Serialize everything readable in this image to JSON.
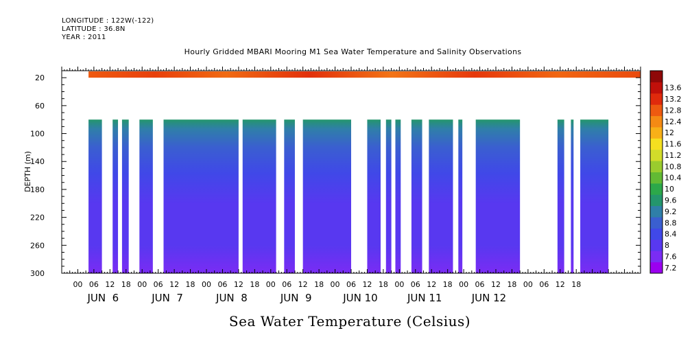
{
  "header": {
    "longitude": "LONGITUDE : 122W(-122)",
    "latitude": "LATITUDE : 36.8N",
    "year": "YEAR : 2011"
  },
  "chart_data": {
    "type": "heatmap",
    "title": "Hourly Gridded MBARI Mooring M1 Sea Water Temperature and Salinity Observations",
    "xlabel": "Sea Water Temperature (Celsius)",
    "ylabel": "DEPTH (m)",
    "ylim": [
      300,
      10
    ],
    "y_ticks": [
      20,
      60,
      100,
      140,
      180,
      220,
      260,
      300
    ],
    "x_hour_ticks": [
      "00",
      "06",
      "12",
      "18",
      "00",
      "06",
      "12",
      "18",
      "00",
      "06",
      "12",
      "18",
      "00",
      "06",
      "12",
      "18",
      "00",
      "06",
      "12",
      "18",
      "00",
      "06",
      "12",
      "18",
      "00",
      "06",
      "12",
      "18",
      "00",
      "06",
      "12",
      "18"
    ],
    "x_day_labels": [
      "JUN  6",
      "JUN  7",
      "JUN  8",
      "JUN  9",
      "JUN 10",
      "JUN 11",
      "JUN 12"
    ],
    "x_range_hours_since_jun6_00": [
      -6,
      210
    ],
    "colorbar": {
      "levels": [
        7.2,
        7.6,
        8,
        8.4,
        8.8,
        9.2,
        9.6,
        10,
        10.4,
        10.8,
        11.2,
        11.6,
        12,
        12.4,
        12.8,
        13.2,
        13.6
      ],
      "colors": [
        "#9b00f0",
        "#7a2cf4",
        "#5838f0",
        "#4048e8",
        "#3a5fd0",
        "#2f7fa8",
        "#24966c",
        "#2ca84a",
        "#62ba34",
        "#9acc2e",
        "#d2dc2a",
        "#f5e020",
        "#f8b018",
        "#f58a14",
        "#ee5a10",
        "#e02a0c",
        "#c0100a",
        "#8e0808"
      ]
    },
    "surface_layer": {
      "depth_range": [
        10,
        20
      ],
      "temperature_range": [
        12.4,
        13.2
      ],
      "time_range_hours": [
        4,
        210
      ]
    },
    "deep_layer": {
      "depth_range": [
        80,
        300
      ],
      "temperature_range": [
        7.2,
        9.6
      ],
      "data_segments_hours": [
        [
          4,
          9
        ],
        [
          13,
          15
        ],
        [
          16.5,
          19
        ],
        [
          23,
          28
        ],
        [
          32,
          60
        ],
        [
          61.5,
          74
        ],
        [
          77,
          81
        ],
        [
          84,
          102
        ],
        [
          108,
          113
        ],
        [
          115,
          117
        ],
        [
          118.5,
          120.5
        ],
        [
          124.5,
          128.5
        ],
        [
          131,
          140
        ],
        [
          142,
          143.5
        ],
        [
          148.5,
          165
        ],
        [
          179,
          181.5
        ],
        [
          184,
          185
        ],
        [
          187.5,
          198
        ]
      ]
    }
  }
}
